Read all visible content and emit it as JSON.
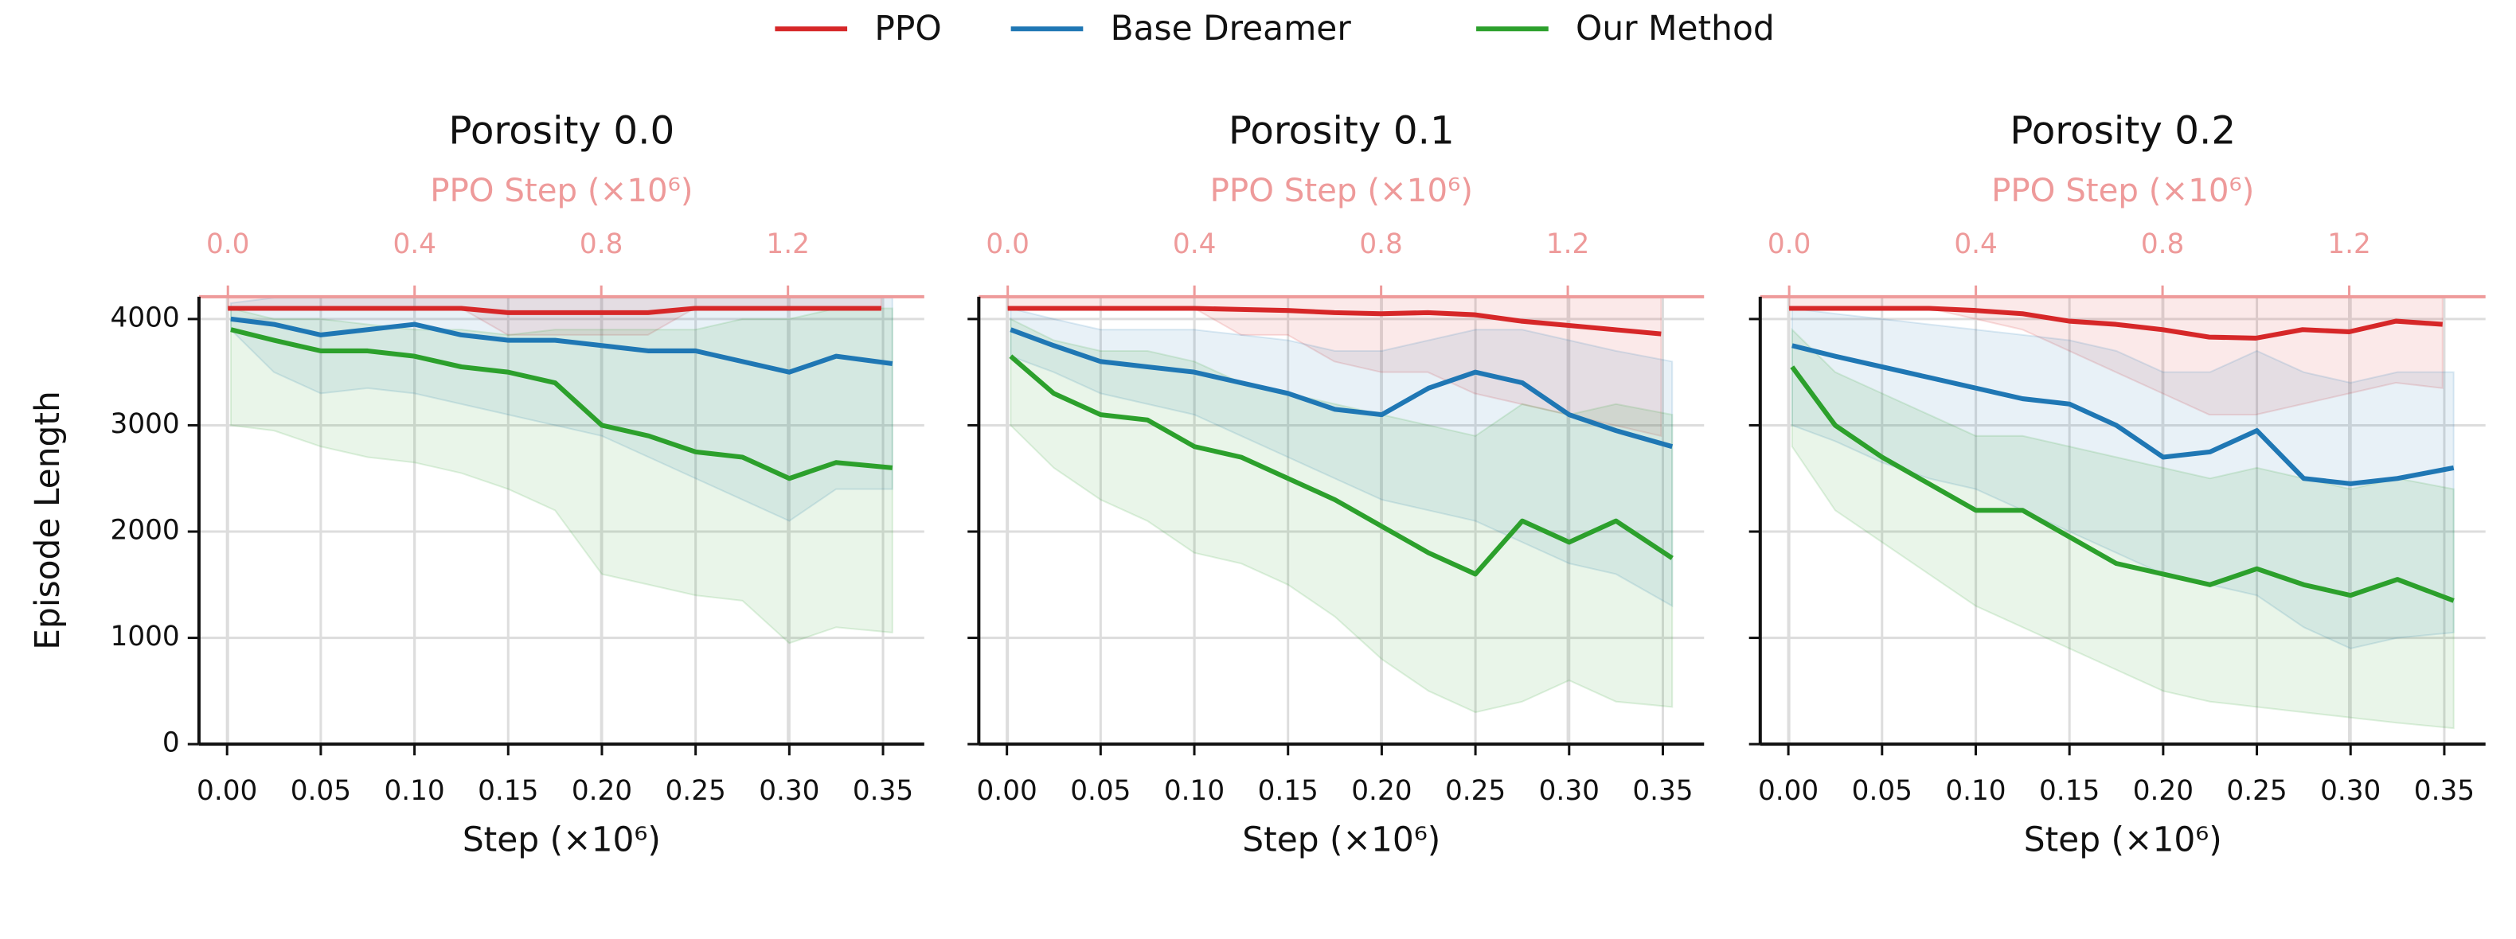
{
  "chart_data": [
    {
      "type": "line",
      "title": "Porosity 0.0",
      "xlabel": "Step (×10⁶)",
      "ylabel": "Episode Length",
      "x2label": "PPO Step (×10⁶)",
      "xlim": [
        -0.015,
        0.372
      ],
      "xticks": [
        {
          "value": 0,
          "label": "0.00"
        },
        0.05,
        {
          "value": 0.1,
          "label": "0.10"
        },
        0.15,
        {
          "value": 0.2,
          "label": "0.20"
        },
        0.25,
        {
          "value": 0.3,
          "label": "0.30"
        },
        0.35
      ],
      "x2lim": [
        -0.062,
        1.492
      ],
      "x2ticks": [
        {
          "value": 0,
          "label": "0.0"
        },
        0.4,
        0.8,
        1.2
      ],
      "ylim": [
        0,
        4210
      ],
      "yticks": [
        0,
        1000,
        2000,
        3000,
        4000
      ],
      "grid": true,
      "series": [
        {
          "name": "PPO",
          "color": "#d62728",
          "axis": "x2",
          "x": [
            0,
            0.1,
            0.2,
            0.3,
            0.4,
            0.5,
            0.6,
            0.7,
            0.8,
            0.9,
            1.0,
            1.1,
            1.2,
            1.3,
            1.4
          ],
          "values": [
            4100,
            4100,
            4100,
            4100,
            4100,
            4100,
            4060,
            4060,
            4060,
            4060,
            4100,
            4100,
            4100,
            4100,
            4100
          ],
          "lower": [
            4100,
            4100,
            4100,
            4100,
            4100,
            4100,
            3850,
            3850,
            3850,
            3850,
            4100,
            4100,
            4100,
            4100,
            4100
          ],
          "upper": [
            4200,
            4200,
            4200,
            4200,
            4200,
            4200,
            4200,
            4200,
            4200,
            4200,
            4200,
            4200,
            4200,
            4200,
            4200
          ]
        },
        {
          "name": "Base Dreamer",
          "color": "#1f77b4",
          "x": [
            0.002,
            0.025,
            0.05,
            0.075,
            0.1,
            0.125,
            0.15,
            0.175,
            0.2,
            0.225,
            0.25,
            0.275,
            0.3,
            0.325,
            0.355
          ],
          "values": [
            4000,
            3950,
            3850,
            3900,
            3950,
            3850,
            3800,
            3800,
            3750,
            3700,
            3700,
            3600,
            3500,
            3650,
            3580
          ],
          "lower": [
            3900,
            3500,
            3300,
            3350,
            3300,
            3200,
            3100,
            3000,
            2900,
            2700,
            2500,
            2300,
            2100,
            2400,
            2400
          ],
          "upper": [
            4150,
            4200,
            4200,
            4200,
            4200,
            4200,
            4200,
            4200,
            4200,
            4200,
            4200,
            4200,
            4200,
            4200,
            4200
          ]
        },
        {
          "name": "Our Method",
          "color": "#2ca02c",
          "x": [
            0.002,
            0.025,
            0.05,
            0.075,
            0.1,
            0.125,
            0.15,
            0.175,
            0.2,
            0.225,
            0.25,
            0.275,
            0.3,
            0.325,
            0.355
          ],
          "values": [
            3900,
            3800,
            3700,
            3700,
            3650,
            3550,
            3500,
            3400,
            3000,
            2900,
            2750,
            2700,
            2500,
            2650,
            2600
          ],
          "lower": [
            3000,
            2950,
            2800,
            2700,
            2650,
            2550,
            2400,
            2200,
            1600,
            1500,
            1400,
            1350,
            950,
            1100,
            1050
          ],
          "upper": [
            4100,
            4000,
            4000,
            3950,
            3900,
            3900,
            3850,
            3900,
            3900,
            3900,
            3900,
            4000,
            4000,
            4100,
            4100
          ]
        }
      ]
    },
    {
      "type": "line",
      "title": "Porosity 0.1",
      "xlabel": "Step (×10⁶)",
      "x2label": "PPO Step (×10⁶)",
      "xlim": [
        -0.015,
        0.372
      ],
      "xticks": [
        {
          "value": 0,
          "label": "0.00"
        },
        0.05,
        {
          "value": 0.1,
          "label": "0.10"
        },
        0.15,
        {
          "value": 0.2,
          "label": "0.20"
        },
        0.25,
        {
          "value": 0.3,
          "label": "0.30"
        },
        0.35
      ],
      "x2lim": [
        -0.062,
        1.492
      ],
      "x2ticks": [
        {
          "value": 0,
          "label": "0.0"
        },
        0.4,
        0.8,
        1.2
      ],
      "ylim": [
        0,
        4210
      ],
      "yticks": [
        0,
        1000,
        2000,
        3000,
        4000
      ],
      "grid": true,
      "series": [
        {
          "name": "PPO",
          "color": "#d62728",
          "axis": "x2",
          "x": [
            0,
            0.1,
            0.2,
            0.3,
            0.4,
            0.5,
            0.6,
            0.7,
            0.8,
            0.9,
            1.0,
            1.1,
            1.2,
            1.3,
            1.4
          ],
          "values": [
            4100,
            4100,
            4100,
            4100,
            4100,
            4090,
            4080,
            4060,
            4050,
            4060,
            4040,
            3980,
            3940,
            3900,
            3860
          ],
          "lower": [
            4100,
            4100,
            4100,
            4100,
            4100,
            3850,
            3850,
            3600,
            3500,
            3500,
            3300,
            3200,
            3100,
            3000,
            2900
          ],
          "upper": [
            4200,
            4200,
            4200,
            4200,
            4200,
            4200,
            4200,
            4200,
            4200,
            4200,
            4200,
            4200,
            4200,
            4200,
            4200
          ]
        },
        {
          "name": "Base Dreamer",
          "color": "#1f77b4",
          "x": [
            0.002,
            0.025,
            0.05,
            0.075,
            0.1,
            0.125,
            0.15,
            0.175,
            0.2,
            0.225,
            0.25,
            0.275,
            0.3,
            0.325,
            0.355
          ],
          "values": [
            3900,
            3750,
            3600,
            3550,
            3500,
            3400,
            3300,
            3150,
            3100,
            3350,
            3500,
            3400,
            3100,
            2950,
            2800
          ],
          "lower": [
            3650,
            3500,
            3300,
            3200,
            3100,
            2900,
            2700,
            2500,
            2300,
            2200,
            2100,
            1900,
            1700,
            1600,
            1300
          ],
          "upper": [
            4100,
            4000,
            3900,
            3900,
            3900,
            3850,
            3800,
            3700,
            3700,
            3800,
            3900,
            3900,
            3800,
            3700,
            3600
          ]
        },
        {
          "name": "Our Method",
          "color": "#2ca02c",
          "x": [
            0.002,
            0.025,
            0.05,
            0.075,
            0.1,
            0.125,
            0.15,
            0.175,
            0.2,
            0.225,
            0.25,
            0.275,
            0.3,
            0.325,
            0.355
          ],
          "values": [
            3650,
            3300,
            3100,
            3050,
            2800,
            2700,
            2500,
            2300,
            2050,
            1800,
            1600,
            2100,
            1900,
            2100,
            1750
          ],
          "lower": [
            3000,
            2600,
            2300,
            2100,
            1800,
            1700,
            1500,
            1200,
            800,
            500,
            300,
            400,
            600,
            400,
            350
          ],
          "upper": [
            4000,
            3800,
            3700,
            3700,
            3600,
            3400,
            3300,
            3200,
            3100,
            3000,
            2900,
            3200,
            3100,
            3200,
            3100
          ]
        }
      ]
    },
    {
      "type": "line",
      "title": "Porosity 0.2",
      "xlabel": "Step (×10⁶)",
      "x2label": "PPO Step (×10⁶)",
      "xlim": [
        -0.015,
        0.372
      ],
      "xticks": [
        {
          "value": 0,
          "label": "0.00"
        },
        0.05,
        {
          "value": 0.1,
          "label": "0.10"
        },
        0.15,
        {
          "value": 0.2,
          "label": "0.20"
        },
        0.25,
        {
          "value": 0.3,
          "label": "0.30"
        },
        0.35
      ],
      "x2lim": [
        -0.062,
        1.492
      ],
      "x2ticks": [
        {
          "value": 0,
          "label": "0.0"
        },
        0.4,
        0.8,
        1.2
      ],
      "ylim": [
        0,
        4210
      ],
      "yticks": [
        0,
        1000,
        2000,
        3000,
        4000
      ],
      "grid": true,
      "series": [
        {
          "name": "PPO",
          "color": "#d62728",
          "axis": "x2",
          "x": [
            0,
            0.1,
            0.2,
            0.3,
            0.4,
            0.5,
            0.6,
            0.7,
            0.8,
            0.9,
            1.0,
            1.1,
            1.2,
            1.3,
            1.4
          ],
          "values": [
            4100,
            4100,
            4100,
            4100,
            4080,
            4050,
            3980,
            3950,
            3900,
            3830,
            3820,
            3900,
            3880,
            3980,
            3950
          ],
          "lower": [
            4100,
            4100,
            4100,
            4100,
            4000,
            3900,
            3700,
            3500,
            3300,
            3100,
            3100,
            3200,
            3300,
            3400,
            3350
          ],
          "upper": [
            4200,
            4200,
            4200,
            4200,
            4200,
            4200,
            4200,
            4200,
            4200,
            4200,
            4200,
            4200,
            4200,
            4200,
            4200
          ]
        },
        {
          "name": "Base Dreamer",
          "color": "#1f77b4",
          "x": [
            0.002,
            0.025,
            0.05,
            0.075,
            0.1,
            0.125,
            0.15,
            0.175,
            0.2,
            0.225,
            0.25,
            0.275,
            0.3,
            0.325,
            0.355
          ],
          "values": [
            3750,
            3650,
            3550,
            3450,
            3350,
            3250,
            3200,
            3000,
            2700,
            2750,
            2950,
            2500,
            2450,
            2500,
            2600
          ],
          "lower": [
            3000,
            2850,
            2650,
            2500,
            2400,
            2200,
            2000,
            1800,
            1600,
            1500,
            1400,
            1100,
            900,
            1000,
            1050
          ],
          "upper": [
            4100,
            4050,
            4000,
            3950,
            3900,
            3850,
            3800,
            3700,
            3500,
            3500,
            3700,
            3500,
            3400,
            3500,
            3500
          ]
        },
        {
          "name": "Our Method",
          "color": "#2ca02c",
          "x": [
            0.002,
            0.025,
            0.05,
            0.075,
            0.1,
            0.125,
            0.15,
            0.175,
            0.2,
            0.225,
            0.25,
            0.275,
            0.3,
            0.325,
            0.355
          ],
          "values": [
            3550,
            3000,
            2700,
            2450,
            2200,
            2200,
            1950,
            1700,
            1600,
            1500,
            1650,
            1500,
            1400,
            1550,
            1350
          ],
          "lower": [
            2800,
            2200,
            1900,
            1600,
            1300,
            1100,
            900,
            700,
            500,
            400,
            350,
            300,
            250,
            200,
            150
          ],
          "upper": [
            3900,
            3500,
            3300,
            3100,
            2900,
            2900,
            2800,
            2700,
            2600,
            2500,
            2600,
            2500,
            2400,
            2500,
            2400
          ]
        }
      ]
    }
  ]
}
